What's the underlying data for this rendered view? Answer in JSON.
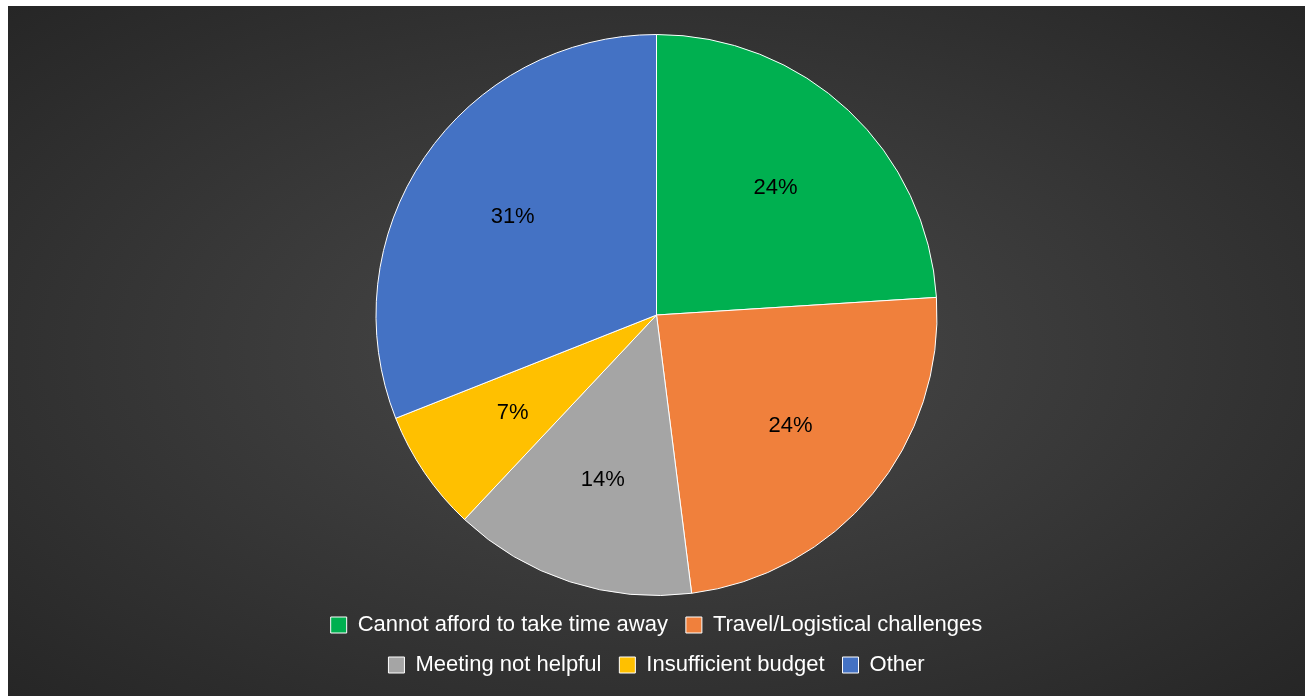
{
  "chart_data": {
    "type": "pie",
    "categories": [
      "Cannot afford to take time away",
      "Travel/Logistical challenges",
      "Meeting not helpful",
      "Insufficient budget",
      "Other"
    ],
    "values": [
      24,
      24,
      14,
      7,
      31
    ],
    "colors": [
      "#00b050",
      "#f0803c",
      "#a5a5a5",
      "#ffc000",
      "#4472c4"
    ],
    "value_labels": [
      "24%",
      "24%",
      "14%",
      "7%",
      "31%"
    ],
    "legend": "bottom"
  }
}
